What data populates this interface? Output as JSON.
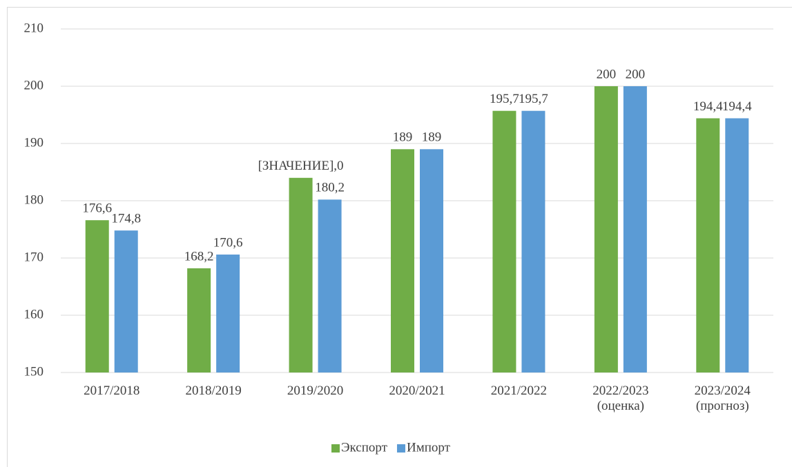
{
  "chart_data": {
    "type": "bar",
    "categories": [
      "2017/2018",
      "2018/2019",
      "2019/2020",
      "2020/2021",
      "2021/2022",
      "2022/2023\n(оценка)",
      "2023/2024\n(прогноз)"
    ],
    "series": [
      {
        "name": "Экспорт",
        "color": "#70ad47",
        "values": [
          176.6,
          168.2,
          184,
          189,
          195.7,
          200,
          194.4
        ],
        "value_labels": [
          "176,6",
          "168,2",
          "[ЗНАЧЕНИЕ],0",
          "189",
          "195,7",
          "200",
          "194,4"
        ]
      },
      {
        "name": "Импорт",
        "color": "#5b9bd5",
        "values": [
          174.8,
          170.6,
          180.2,
          189,
          195.7,
          200,
          194.4
        ],
        "value_labels": [
          "174,8",
          "170,6",
          "180,2",
          "189",
          "195,7",
          "200",
          "194,4"
        ]
      }
    ],
    "ylim": [
      150,
      210
    ],
    "yticks": [
      150,
      160,
      170,
      180,
      190,
      200,
      210
    ],
    "grid": true,
    "legend": "bottom"
  }
}
